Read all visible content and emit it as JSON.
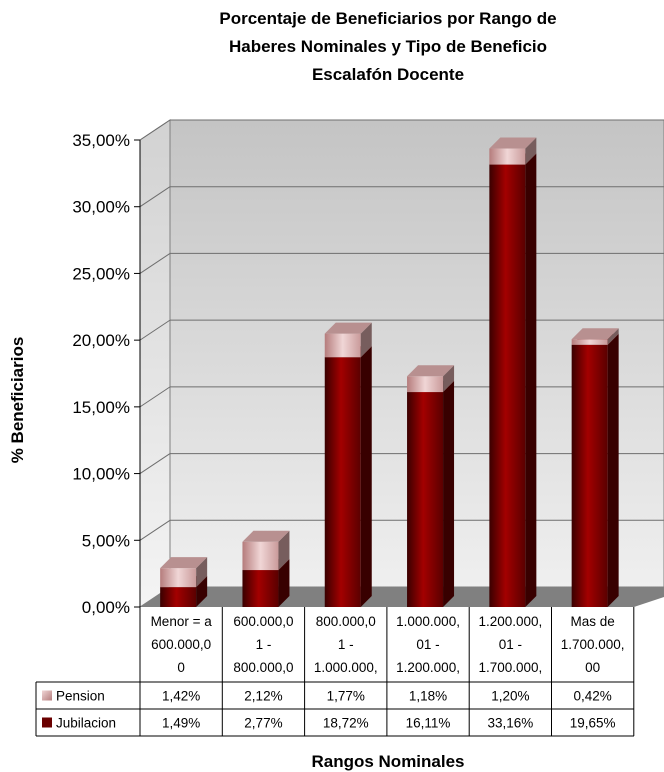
{
  "chart_data": {
    "type": "bar",
    "stacked": true,
    "title_lines": [
      "Porcentaje de Beneficiarios por Rango de",
      "Haberes Nominales y Tipo de Beneficio",
      "Escalafón Docente"
    ],
    "xlabel": "Rangos Nominales",
    "ylabel": "% Beneficiarios",
    "ylim": [
      0,
      35
    ],
    "yticks": [
      "0,00%",
      "5,00%",
      "10,00%",
      "15,00%",
      "20,00%",
      "25,00%",
      "30,00%",
      "35,00%"
    ],
    "grid": true,
    "categories": [
      [
        "Menor = a",
        "600.000,0",
        "0"
      ],
      [
        "600.000,0",
        "1 -",
        "800.000,0"
      ],
      [
        "800.000,0",
        "1 -",
        "1.000.000,"
      ],
      [
        "1.000.000,",
        "01 -",
        "1.200.000,"
      ],
      [
        "1.200.000,",
        "01 -",
        "1.700.000,"
      ],
      [
        "Mas de",
        "1.700.000,",
        "00"
      ]
    ],
    "series": [
      {
        "name": "Pension",
        "values": [
          1.42,
          2.12,
          1.77,
          1.18,
          1.2,
          0.42
        ],
        "labels": [
          "1,42%",
          "2,12%",
          "1,77%",
          "1,18%",
          "1,20%",
          "0,42%"
        ],
        "color": "#d9a9a9"
      },
      {
        "name": "Jubilacion",
        "values": [
          1.49,
          2.77,
          18.72,
          16.11,
          33.16,
          19.65
        ],
        "labels": [
          "1,49%",
          "2,77%",
          "18,72%",
          "16,11%",
          "33,16%",
          "19,65%"
        ],
        "color": "#8b0000"
      }
    ],
    "colors": {
      "wall_top": "#c4c4c4",
      "wall_bottom": "#ececec",
      "floor": "#808080",
      "jubilacion": "#8b0000",
      "pension": "#d9a9a9"
    }
  }
}
